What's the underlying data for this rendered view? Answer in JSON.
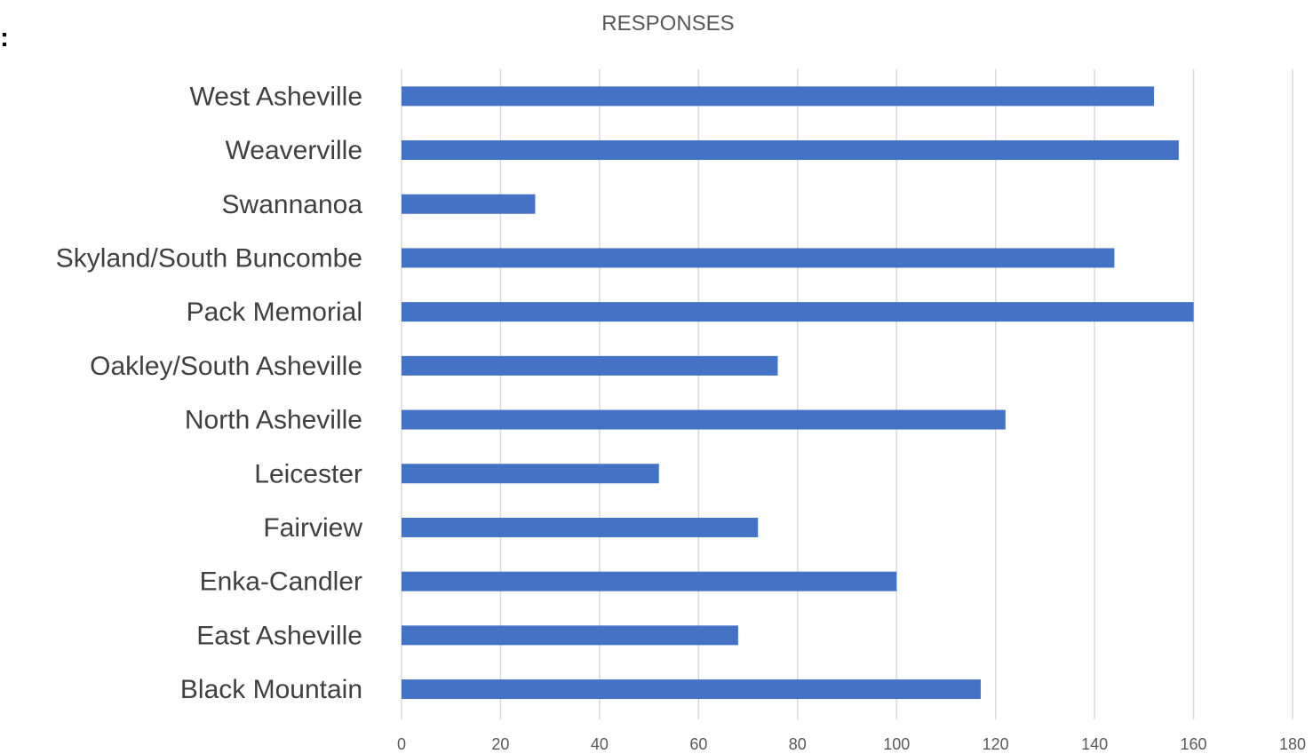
{
  "corner_mark": ":",
  "chart_data": {
    "type": "bar",
    "orientation": "horizontal",
    "title": "RESPONSES",
    "xlabel": "",
    "ylabel": "",
    "categories": [
      "West Asheville",
      "Weaverville",
      "Swannanoa",
      "Skyland/South Buncombe",
      "Pack Memorial",
      "Oakley/South Asheville",
      "North Asheville",
      "Leicester",
      "Fairview",
      "Enka-Candler",
      "East Asheville",
      "Black Mountain"
    ],
    "values": [
      152,
      157,
      27,
      144,
      160,
      76,
      122,
      52,
      72,
      100,
      68,
      117
    ],
    "xlim": [
      0,
      180
    ],
    "ticks": [
      0,
      20,
      40,
      60,
      80,
      100,
      120,
      140,
      160,
      180
    ],
    "grid": true,
    "legend": "none",
    "bar_color": "#4472C4",
    "grid_color": "#D9D9D9"
  }
}
